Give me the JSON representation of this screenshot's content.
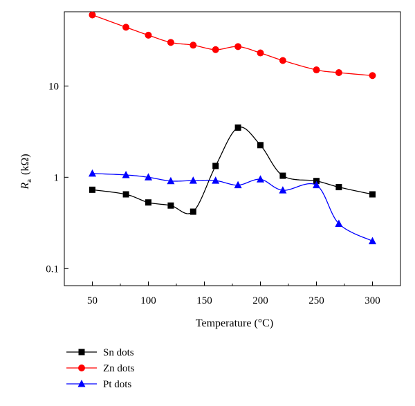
{
  "chart_data": {
    "type": "line",
    "title": "",
    "xlabel": "Temperature (°C)",
    "ylabel": {
      "symbol": "R",
      "subscript": "a",
      "unit": "(kΩ)"
    },
    "xlim": [
      25,
      325
    ],
    "ylim": [
      0.065,
      65
    ],
    "yscale": "log",
    "xticks": [
      50,
      100,
      150,
      200,
      250,
      300
    ],
    "xtick_labels": [
      "50",
      "100",
      "150",
      "200",
      "250",
      "300"
    ],
    "yticks": [
      0.1,
      1,
      10
    ],
    "ytick_labels": [
      "0.1",
      "1",
      "10"
    ],
    "grid": false,
    "legend_position": "bottom-left, below plot",
    "series": [
      {
        "name": "Sn dots",
        "marker": "square",
        "color": "#000000",
        "x": [
          50,
          80,
          100,
          120,
          140,
          160,
          180,
          200,
          220,
          250,
          270,
          300
        ],
        "y": [
          0.73,
          0.65,
          0.53,
          0.49,
          0.42,
          1.33,
          3.5,
          2.25,
          1.04,
          0.91,
          0.78,
          0.65
        ]
      },
      {
        "name": "Zn dots",
        "marker": "circle",
        "color": "#ff0000",
        "x": [
          50,
          80,
          100,
          120,
          140,
          160,
          180,
          200,
          220,
          250,
          270,
          300
        ],
        "y": [
          60,
          44,
          36,
          30,
          28,
          25,
          27,
          23,
          19,
          15,
          14,
          13
        ]
      },
      {
        "name": "Pt dots",
        "marker": "triangle",
        "color": "#0000ff",
        "x": [
          50,
          80,
          100,
          120,
          140,
          160,
          180,
          200,
          220,
          250,
          270,
          300
        ],
        "y": [
          1.1,
          1.06,
          1.0,
          0.91,
          0.92,
          0.92,
          0.82,
          0.95,
          0.72,
          0.82,
          0.31,
          0.2
        ]
      }
    ]
  }
}
